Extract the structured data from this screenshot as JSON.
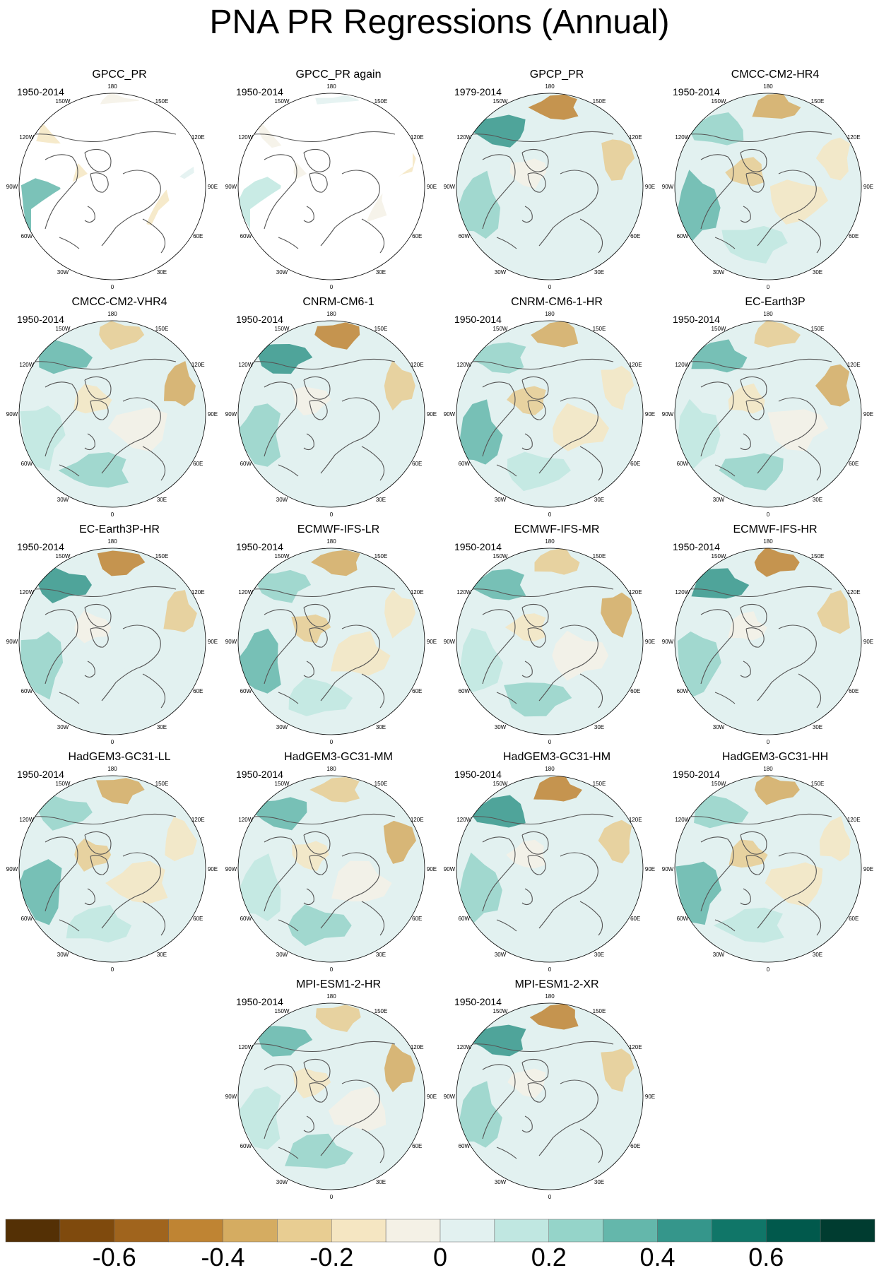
{
  "title": "PNA PR Regressions (Annual)",
  "projection": "north-polar-stereographic",
  "longitude_labels": [
    "180",
    "150E",
    "120E",
    "90E",
    "60E",
    "30E",
    "0",
    "30W",
    "60W",
    "90W",
    "120W",
    "150W"
  ],
  "panels": [
    {
      "name": "GPCC_PR",
      "period": "1950-2014",
      "missing_region": "large"
    },
    {
      "name": "GPCC_PR again",
      "period": "1950-2014",
      "missing_region": "large"
    },
    {
      "name": "GPCP_PR",
      "period": "1979-2014"
    },
    {
      "name": "CMCC-CM2-HR4",
      "period": "1950-2014"
    },
    {
      "name": "CMCC-CM2-VHR4",
      "period": "1950-2014"
    },
    {
      "name": "CNRM-CM6-1",
      "period": "1950-2014"
    },
    {
      "name": "CNRM-CM6-1-HR",
      "period": "1950-2014"
    },
    {
      "name": "EC-Earth3P",
      "period": "1950-2014"
    },
    {
      "name": "EC-Earth3P-HR",
      "period": "1950-2014"
    },
    {
      "name": "ECMWF-IFS-LR",
      "period": "1950-2014"
    },
    {
      "name": "ECMWF-IFS-MR",
      "period": "1950-2014"
    },
    {
      "name": "ECMWF-IFS-HR",
      "period": "1950-2014"
    },
    {
      "name": "HadGEM3-GC31-LL",
      "period": "1950-2014"
    },
    {
      "name": "HadGEM3-GC31-MM",
      "period": "1950-2014"
    },
    {
      "name": "HadGEM3-GC31-HM",
      "period": "1950-2014"
    },
    {
      "name": "HadGEM3-GC31-HH",
      "period": "1950-2014"
    },
    {
      "name": "MPI-ESM1-2-HR",
      "period": "1950-2014"
    },
    {
      "name": "MPI-ESM1-2-XR",
      "period": "1950-2014"
    }
  ],
  "colorbar": {
    "colors": [
      "#543005",
      "#7f4a0d",
      "#a0641d",
      "#bf8433",
      "#d5ac61",
      "#e8cd92",
      "#f5e6c2",
      "#f4f1e6",
      "#e2f1f0",
      "#c0e7e1",
      "#95d4c9",
      "#64b7ab",
      "#35968b",
      "#107668",
      "#01594c",
      "#003c30"
    ],
    "tick_labels": [
      "-0.6",
      "-0.4",
      "-0.2",
      "0",
      "0.2",
      "0.4",
      "0.6"
    ]
  }
}
